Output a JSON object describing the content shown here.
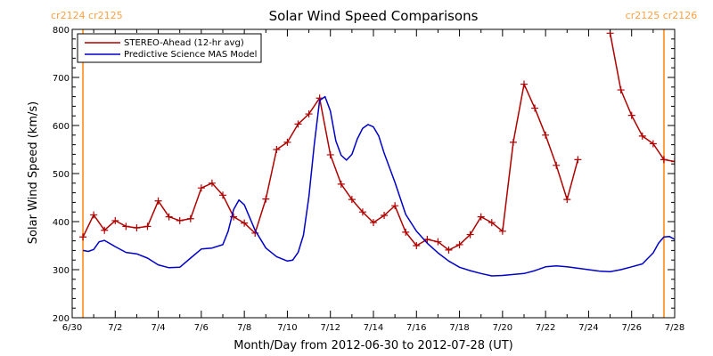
{
  "chart_data": {
    "type": "line",
    "title": "Solar Wind Speed Comparisons",
    "xlabel": "Month/Day from 2012-06-30 to 2012-07-28 (UT)",
    "ylabel": "Solar Wind Speed (km/s)",
    "xlim": [
      "2012-06-30",
      "2012-07-28"
    ],
    "ylim": [
      200,
      800
    ],
    "x_ticks": [
      {
        "date": "2012-06-30",
        "label": "6/30"
      },
      {
        "date": "2012-07-02",
        "label": "7/2"
      },
      {
        "date": "2012-07-04",
        "label": "7/4"
      },
      {
        "date": "2012-07-06",
        "label": "7/6"
      },
      {
        "date": "2012-07-08",
        "label": "7/8"
      },
      {
        "date": "2012-07-10",
        "label": "7/10"
      },
      {
        "date": "2012-07-12",
        "label": "7/12"
      },
      {
        "date": "2012-07-14",
        "label": "7/14"
      },
      {
        "date": "2012-07-16",
        "label": "7/16"
      },
      {
        "date": "2012-07-18",
        "label": "7/18"
      },
      {
        "date": "2012-07-20",
        "label": "7/20"
      },
      {
        "date": "2012-07-22",
        "label": "7/22"
      },
      {
        "date": "2012-07-24",
        "label": "7/24"
      },
      {
        "date": "2012-07-26",
        "label": "7/26"
      },
      {
        "date": "2012-07-28",
        "label": "7/28"
      }
    ],
    "y_ticks": [
      200,
      300,
      400,
      500,
      600,
      700,
      800
    ],
    "grid": false,
    "legend_position": "top-left",
    "carrington_markers": [
      {
        "date": "2012-06-30 12:00",
        "label": "cr2124 cr2125",
        "side": "left"
      },
      {
        "date": "2012-07-27 12:00",
        "label": "cr2125 cr2126",
        "side": "right"
      }
    ],
    "marker_color": "#ffa040",
    "series": [
      {
        "name": "STEREO-Ahead (12-hr avg)",
        "color": "#b00000",
        "marker": "plus",
        "segments": [
          [
            [
              "2012-06-30 12:00",
              368
            ],
            [
              "2012-07-01 00:00",
              414
            ],
            [
              "2012-07-01 12:00",
              382
            ],
            [
              "2012-07-02 00:00",
              402
            ],
            [
              "2012-07-02 12:00",
              390
            ],
            [
              "2012-07-03 00:00",
              387
            ],
            [
              "2012-07-03 12:00",
              390
            ],
            [
              "2012-07-04 00:00",
              443
            ],
            [
              "2012-07-04 12:00",
              410
            ],
            [
              "2012-07-05 00:00",
              402
            ],
            [
              "2012-07-05 12:00",
              406
            ],
            [
              "2012-07-06 00:00",
              470
            ],
            [
              "2012-07-06 12:00",
              480
            ],
            [
              "2012-07-07 00:00",
              455
            ],
            [
              "2012-07-07 12:00",
              410
            ],
            [
              "2012-07-08 00:00",
              397
            ],
            [
              "2012-07-08 12:00",
              376
            ],
            [
              "2012-07-09 00:00",
              447
            ],
            [
              "2012-07-09 12:00",
              550
            ],
            [
              "2012-07-10 00:00",
              565
            ],
            [
              "2012-07-10 12:00",
              603
            ],
            [
              "2012-07-11 00:00",
              624
            ],
            [
              "2012-07-11 12:00",
              657
            ],
            [
              "2012-07-12 00:00",
              539
            ],
            [
              "2012-07-12 12:00",
              478
            ],
            [
              "2012-07-13 00:00",
              446
            ],
            [
              "2012-07-13 12:00",
              420
            ],
            [
              "2012-07-14 00:00",
              398
            ],
            [
              "2012-07-14 12:00",
              413
            ],
            [
              "2012-07-15 00:00",
              433
            ],
            [
              "2012-07-15 12:00",
              378
            ],
            [
              "2012-07-16 00:00",
              350
            ],
            [
              "2012-07-16 12:00",
              363
            ],
            [
              "2012-07-17 00:00",
              358
            ],
            [
              "2012-07-17 12:00",
              341
            ],
            [
              "2012-07-18 00:00",
              352
            ],
            [
              "2012-07-18 12:00",
              373
            ],
            [
              "2012-07-19 00:00",
              410
            ],
            [
              "2012-07-19 12:00",
              398
            ],
            [
              "2012-07-20 00:00",
              380
            ],
            [
              "2012-07-20 12:00",
              565
            ],
            [
              "2012-07-21 00:00",
              686
            ],
            [
              "2012-07-21 12:00",
              636
            ],
            [
              "2012-07-22 00:00",
              580
            ],
            [
              "2012-07-22 12:00",
              517
            ],
            [
              "2012-07-23 00:00",
              446
            ],
            [
              "2012-07-23 12:00",
              529
            ]
          ],
          [
            [
              "2012-07-25 00:00",
              792
            ],
            [
              "2012-07-25 12:00",
              674
            ],
            [
              "2012-07-26 00:00",
              621
            ],
            [
              "2012-07-26 12:00",
              578
            ],
            [
              "2012-07-27 00:00",
              562
            ],
            [
              "2012-07-27 12:00",
              529
            ],
            [
              "2012-07-28 00:00",
              525
            ]
          ]
        ]
      },
      {
        "name": "Predictive Science MAS Model",
        "color": "#0000c8",
        "marker": "none",
        "segments": [
          [
            [
              "2012-06-30 12:00",
              340
            ],
            [
              "2012-06-30 18:00",
              338
            ],
            [
              "2012-07-01 00:00",
              342
            ],
            [
              "2012-07-01 06:00",
              358
            ],
            [
              "2012-07-01 12:00",
              361
            ],
            [
              "2012-07-02 00:00",
              348
            ],
            [
              "2012-07-02 12:00",
              336
            ],
            [
              "2012-07-03 00:00",
              333
            ],
            [
              "2012-07-03 12:00",
              324
            ],
            [
              "2012-07-04 00:00",
              310
            ],
            [
              "2012-07-04 12:00",
              304
            ],
            [
              "2012-07-05 00:00",
              305
            ],
            [
              "2012-07-05 12:00",
              324
            ],
            [
              "2012-07-06 00:00",
              343
            ],
            [
              "2012-07-06 12:00",
              345
            ],
            [
              "2012-07-07 00:00",
              352
            ],
            [
              "2012-07-07 06:00",
              380
            ],
            [
              "2012-07-07 12:00",
              425
            ],
            [
              "2012-07-07 18:00",
              445
            ],
            [
              "2012-07-08 00:00",
              435
            ],
            [
              "2012-07-08 12:00",
              382
            ],
            [
              "2012-07-09 00:00",
              345
            ],
            [
              "2012-07-09 12:00",
              327
            ],
            [
              "2012-07-10 00:00",
              318
            ],
            [
              "2012-07-10 06:00",
              320
            ],
            [
              "2012-07-10 12:00",
              336
            ],
            [
              "2012-07-10 18:00",
              372
            ],
            [
              "2012-07-11 00:00",
              452
            ],
            [
              "2012-07-11 06:00",
              560
            ],
            [
              "2012-07-11 12:00",
              652
            ],
            [
              "2012-07-11 18:00",
              660
            ],
            [
              "2012-07-12 00:00",
              630
            ],
            [
              "2012-07-12 06:00",
              568
            ],
            [
              "2012-07-12 12:00",
              538
            ],
            [
              "2012-07-12 18:00",
              528
            ],
            [
              "2012-07-13 00:00",
              540
            ],
            [
              "2012-07-13 06:00",
              572
            ],
            [
              "2012-07-13 12:00",
              594
            ],
            [
              "2012-07-13 18:00",
              602
            ],
            [
              "2012-07-14 00:00",
              597
            ],
            [
              "2012-07-14 06:00",
              578
            ],
            [
              "2012-07-14 12:00",
              542
            ],
            [
              "2012-07-15 00:00",
              482
            ],
            [
              "2012-07-15 12:00",
              415
            ],
            [
              "2012-07-16 00:00",
              380
            ],
            [
              "2012-07-16 12:00",
              355
            ],
            [
              "2012-07-17 00:00",
              335
            ],
            [
              "2012-07-17 12:00",
              318
            ],
            [
              "2012-07-18 00:00",
              305
            ],
            [
              "2012-07-18 12:00",
              298
            ],
            [
              "2012-07-19 00:00",
              292
            ],
            [
              "2012-07-19 12:00",
              287
            ],
            [
              "2012-07-20 00:00",
              288
            ],
            [
              "2012-07-20 12:00",
              290
            ],
            [
              "2012-07-21 00:00",
              292
            ],
            [
              "2012-07-21 12:00",
              298
            ],
            [
              "2012-07-22 00:00",
              306
            ],
            [
              "2012-07-22 12:00",
              308
            ],
            [
              "2012-07-23 00:00",
              306
            ],
            [
              "2012-07-23 12:00",
              303
            ],
            [
              "2012-07-24 00:00",
              300
            ],
            [
              "2012-07-24 12:00",
              297
            ],
            [
              "2012-07-25 00:00",
              296
            ],
            [
              "2012-07-25 12:00",
              300
            ],
            [
              "2012-07-26 00:00",
              306
            ],
            [
              "2012-07-26 12:00",
              312
            ],
            [
              "2012-07-27 00:00",
              335
            ],
            [
              "2012-07-27 06:00",
              355
            ],
            [
              "2012-07-27 12:00",
              368
            ],
            [
              "2012-07-27 18:00",
              369
            ],
            [
              "2012-07-28 00:00",
              363
            ]
          ]
        ]
      }
    ]
  }
}
